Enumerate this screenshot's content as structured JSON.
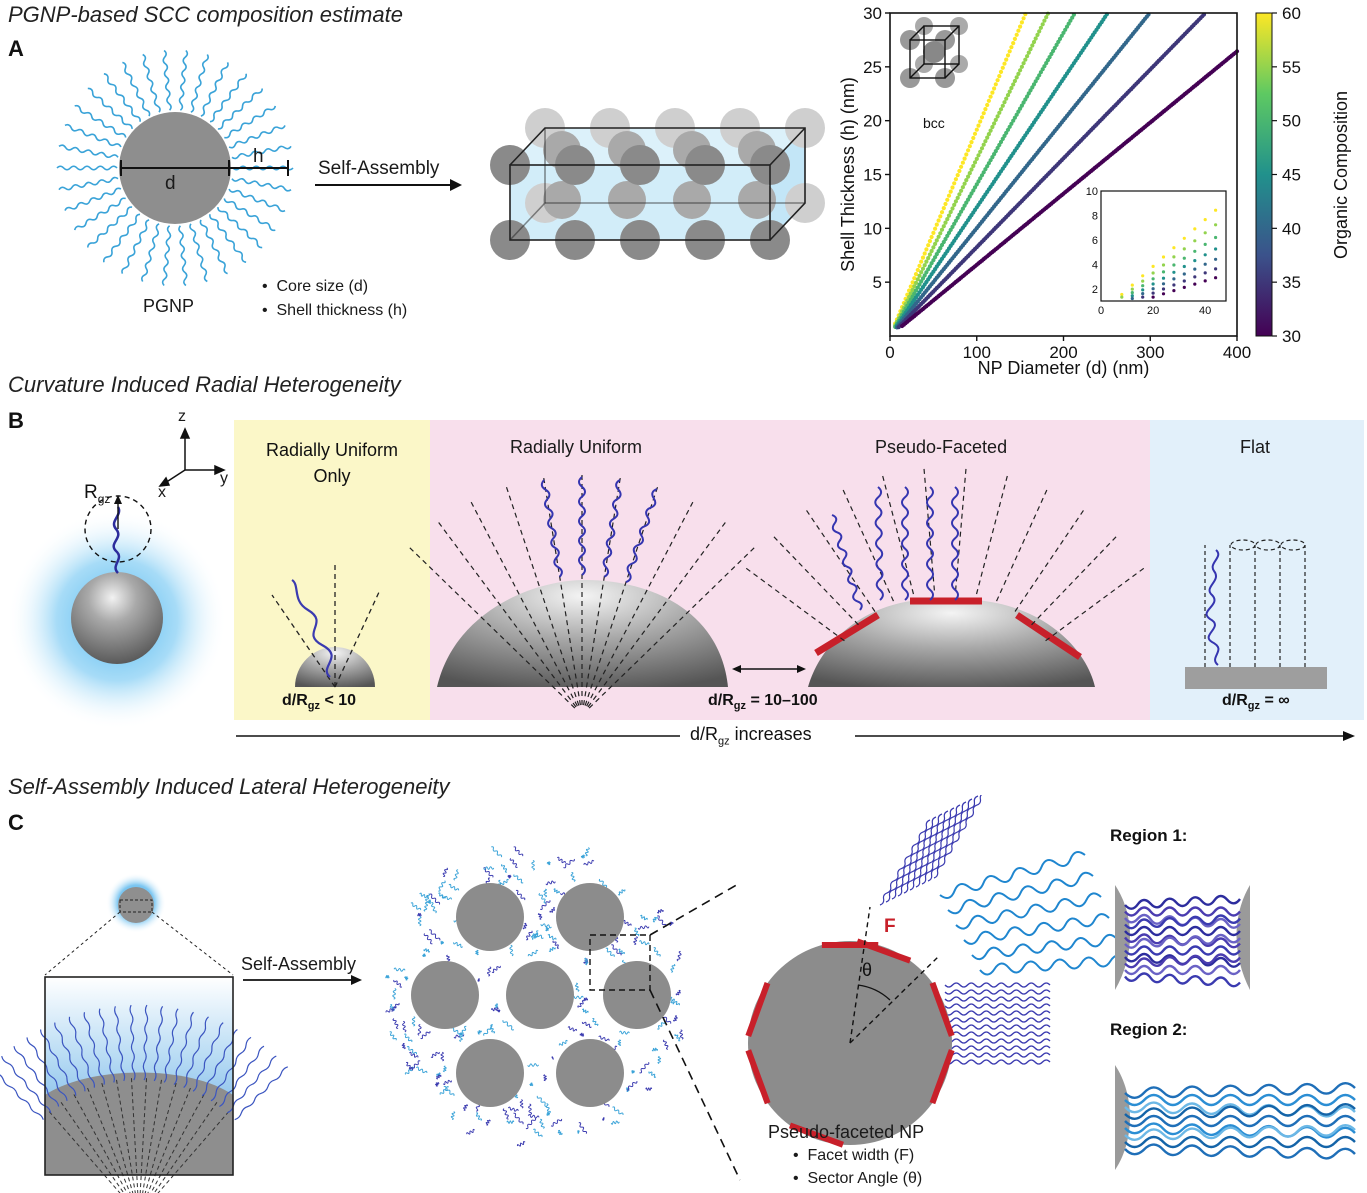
{
  "panel_a": {
    "title": "PGNP-based SCC composition estimate",
    "label": "A",
    "d_label": "d",
    "h_label": "h",
    "pgnp_label": "PGNP",
    "arrow_label": "Self-Assembly",
    "bullets": [
      "Core size (d)",
      "Shell thickness (h)"
    ],
    "lattice_label": "bcc",
    "colorbar_label": "Organic Composition",
    "colorbar_ticks": [
      "60",
      "55",
      "50",
      "45",
      "40",
      "35",
      "30"
    ]
  },
  "panel_b": {
    "title": "Curvature Induced Radial Heterogeneity",
    "label": "B",
    "axis_z": "z",
    "axis_y": "y",
    "axis_x": "x",
    "rgz_main": "R",
    "rgz_sub": "gz",
    "region1_title_line1": "Radially Uniform",
    "region1_title_line2": "Only",
    "region2_title": "Radially Uniform",
    "region3_title": "Pseudo-Faceted",
    "region4_title": "Flat",
    "ratio1_pre": "d/R",
    "ratio1_sub": "gz",
    "ratio1_post": " < 10",
    "ratio2_pre": "d/R",
    "ratio2_sub": "gz",
    "ratio2_post": " = 10–100",
    "ratio3_pre": "d/R",
    "ratio3_sub": "gz",
    "ratio3_post": " = ∞",
    "increase_pre": "d/R",
    "increase_sub": "gz",
    "increase_post": " increases"
  },
  "panel_c": {
    "title": "Self-Assembly Induced Lateral Heterogeneity",
    "label": "C",
    "arrow_label": "Self-Assembly",
    "facet_label": "F",
    "angle_label": "θ",
    "np_label": "Pseudo-faceted NP",
    "bullets": [
      "Facet width (F)",
      "Sector Angle (θ)"
    ],
    "region1_label": "Region 1:",
    "region2_label": "Region 2:"
  },
  "colors": {
    "core_gray": "#8c8c8c",
    "chain_light": "#3aa3d8",
    "chain_dark": "#3b3bb0",
    "facet_red": "#c8202a",
    "region_yellow": "#fbf7c8",
    "region_pink": "#f8dfec",
    "region_blue": "#e2f0fa"
  },
  "chart_data": {
    "type": "scatter",
    "xlabel": "NP Diameter (d) (nm)",
    "ylabel": "Shell Thickness (h) (nm)",
    "xlim": [
      0,
      400
    ],
    "ylim": [
      0,
      30
    ],
    "xticks": [
      0,
      100,
      200,
      300,
      400
    ],
    "yticks": [
      5,
      10,
      15,
      20,
      25,
      30
    ],
    "colorbar": {
      "label": "Organic Composition",
      "range": [
        30,
        60
      ],
      "colormap": "viridis"
    },
    "series": [
      {
        "composition": 60,
        "slope": 0.1916
      },
      {
        "composition": 55,
        "slope": 0.1645
      },
      {
        "composition": 50,
        "slope": 0.1408
      },
      {
        "composition": 45,
        "slope": 0.1195
      },
      {
        "composition": 40,
        "slope": 0.1002
      },
      {
        "composition": 35,
        "slope": 0.0825
      },
      {
        "composition": 30,
        "slope": 0.0661
      }
    ],
    "inset": {
      "xlim": [
        0,
        48
      ],
      "ylim": [
        1,
        10
      ],
      "xticks": [
        0,
        20,
        40
      ],
      "yticks": [
        2,
        4,
        6,
        8,
        10
      ]
    }
  }
}
